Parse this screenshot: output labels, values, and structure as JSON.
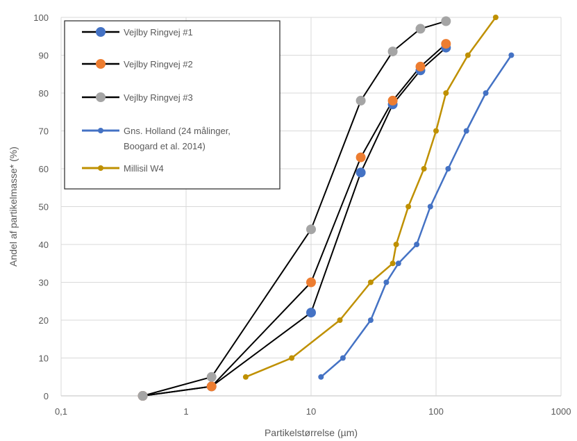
{
  "chart_data": {
    "type": "scatter",
    "xlabel": "Partikelstørrelse (µm)",
    "ylabel": "Andel af partikelmasse* (%)",
    "xscale": "log",
    "xlim": [
      0.1,
      1000
    ],
    "ylim": [
      0,
      100
    ],
    "x_ticks": [
      "0,1",
      "1",
      "10",
      "100",
      "1000"
    ],
    "y_ticks": [
      "0",
      "10",
      "20",
      "30",
      "40",
      "50",
      "60",
      "70",
      "80",
      "90",
      "100"
    ],
    "grid": true,
    "legend_position": "top-left",
    "series": [
      {
        "name": "Vejlby Ringvej #1",
        "line_color": "#000000",
        "marker_color": "#4472C4",
        "marker": "large",
        "x": [
          0.45,
          1.6,
          10,
          25,
          45,
          75,
          120
        ],
        "y": [
          0,
          2.5,
          22,
          59,
          77,
          86,
          92
        ]
      },
      {
        "name": "Vejlby Ringvej #2",
        "line_color": "#000000",
        "marker_color": "#ED7D31",
        "marker": "large",
        "x": [
          0.45,
          1.6,
          10,
          25,
          45,
          75,
          120
        ],
        "y": [
          0,
          2.5,
          30,
          63,
          78,
          87,
          93
        ]
      },
      {
        "name": "Vejlby Ringvej #3",
        "line_color": "#000000",
        "marker_color": "#A5A5A5",
        "marker": "large",
        "x": [
          0.45,
          1.6,
          10,
          25,
          45,
          75,
          120
        ],
        "y": [
          0,
          5,
          44,
          78,
          91,
          97,
          99
        ]
      },
      {
        "name": "Gns. Holland (24 målinger, Boogard et al. 2014)",
        "name_lines": [
          "Gns. Holland (24 målinger,",
          "Boogard et al. 2014)"
        ],
        "line_color": "#4472C4",
        "marker_color": "#4472C4",
        "marker": "small",
        "x": [
          12,
          18,
          30,
          40,
          50,
          70,
          90,
          125,
          175,
          250,
          400
        ],
        "y": [
          5,
          10,
          20,
          30,
          35,
          40,
          50,
          60,
          70,
          80,
          90
        ]
      },
      {
        "name": "Millisil W4",
        "line_color": "#BF9000",
        "marker_color": "#BF9000",
        "marker": "small",
        "x": [
          3,
          7,
          17,
          30,
          45,
          48,
          60,
          80,
          100,
          120,
          180,
          300
        ],
        "y": [
          5,
          10,
          20,
          30,
          35,
          40,
          50,
          60,
          70,
          80,
          90,
          100
        ]
      }
    ]
  }
}
